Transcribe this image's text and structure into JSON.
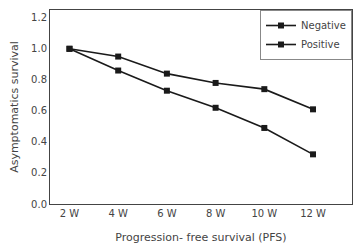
{
  "chart_data": {
    "type": "line",
    "x": [
      1,
      2,
      3,
      4,
      5,
      6
    ],
    "series": [
      {
        "name": "Negative",
        "color": "#1a1a1a",
        "marker": "square",
        "line_style": "solid",
        "values": [
          1.0,
          0.95,
          0.84,
          0.78,
          0.74,
          0.61
        ]
      },
      {
        "name": "Positive",
        "color": "#1a1a1a",
        "marker": "square",
        "line_style": "solid",
        "values": [
          1.0,
          0.86,
          0.73,
          0.62,
          0.49,
          0.32
        ]
      }
    ],
    "xlabel": "Progression- free survival (PFS)",
    "ylabel": "Asymptomatics survival",
    "xlim": [
      0.6,
      6.8
    ],
    "xticks": [
      {
        "value": 1,
        "label": "2 W"
      },
      {
        "value": 2,
        "label": "4 W"
      },
      {
        "value": 3,
        "label": "6 W"
      },
      {
        "value": 4,
        "label": "8 W"
      },
      {
        "value": 5,
        "label": "10 W"
      },
      {
        "value": 6,
        "label": "12 W"
      }
    ],
    "ylim": [
      0,
      1.25
    ],
    "yticks": [
      {
        "value": 0,
        "label": "0.0"
      },
      0.2,
      0.4,
      0.6,
      0.8,
      {
        "value": 1.0,
        "label": "1.0"
      },
      1.2
    ],
    "legend": "upper right",
    "grid": false
  }
}
